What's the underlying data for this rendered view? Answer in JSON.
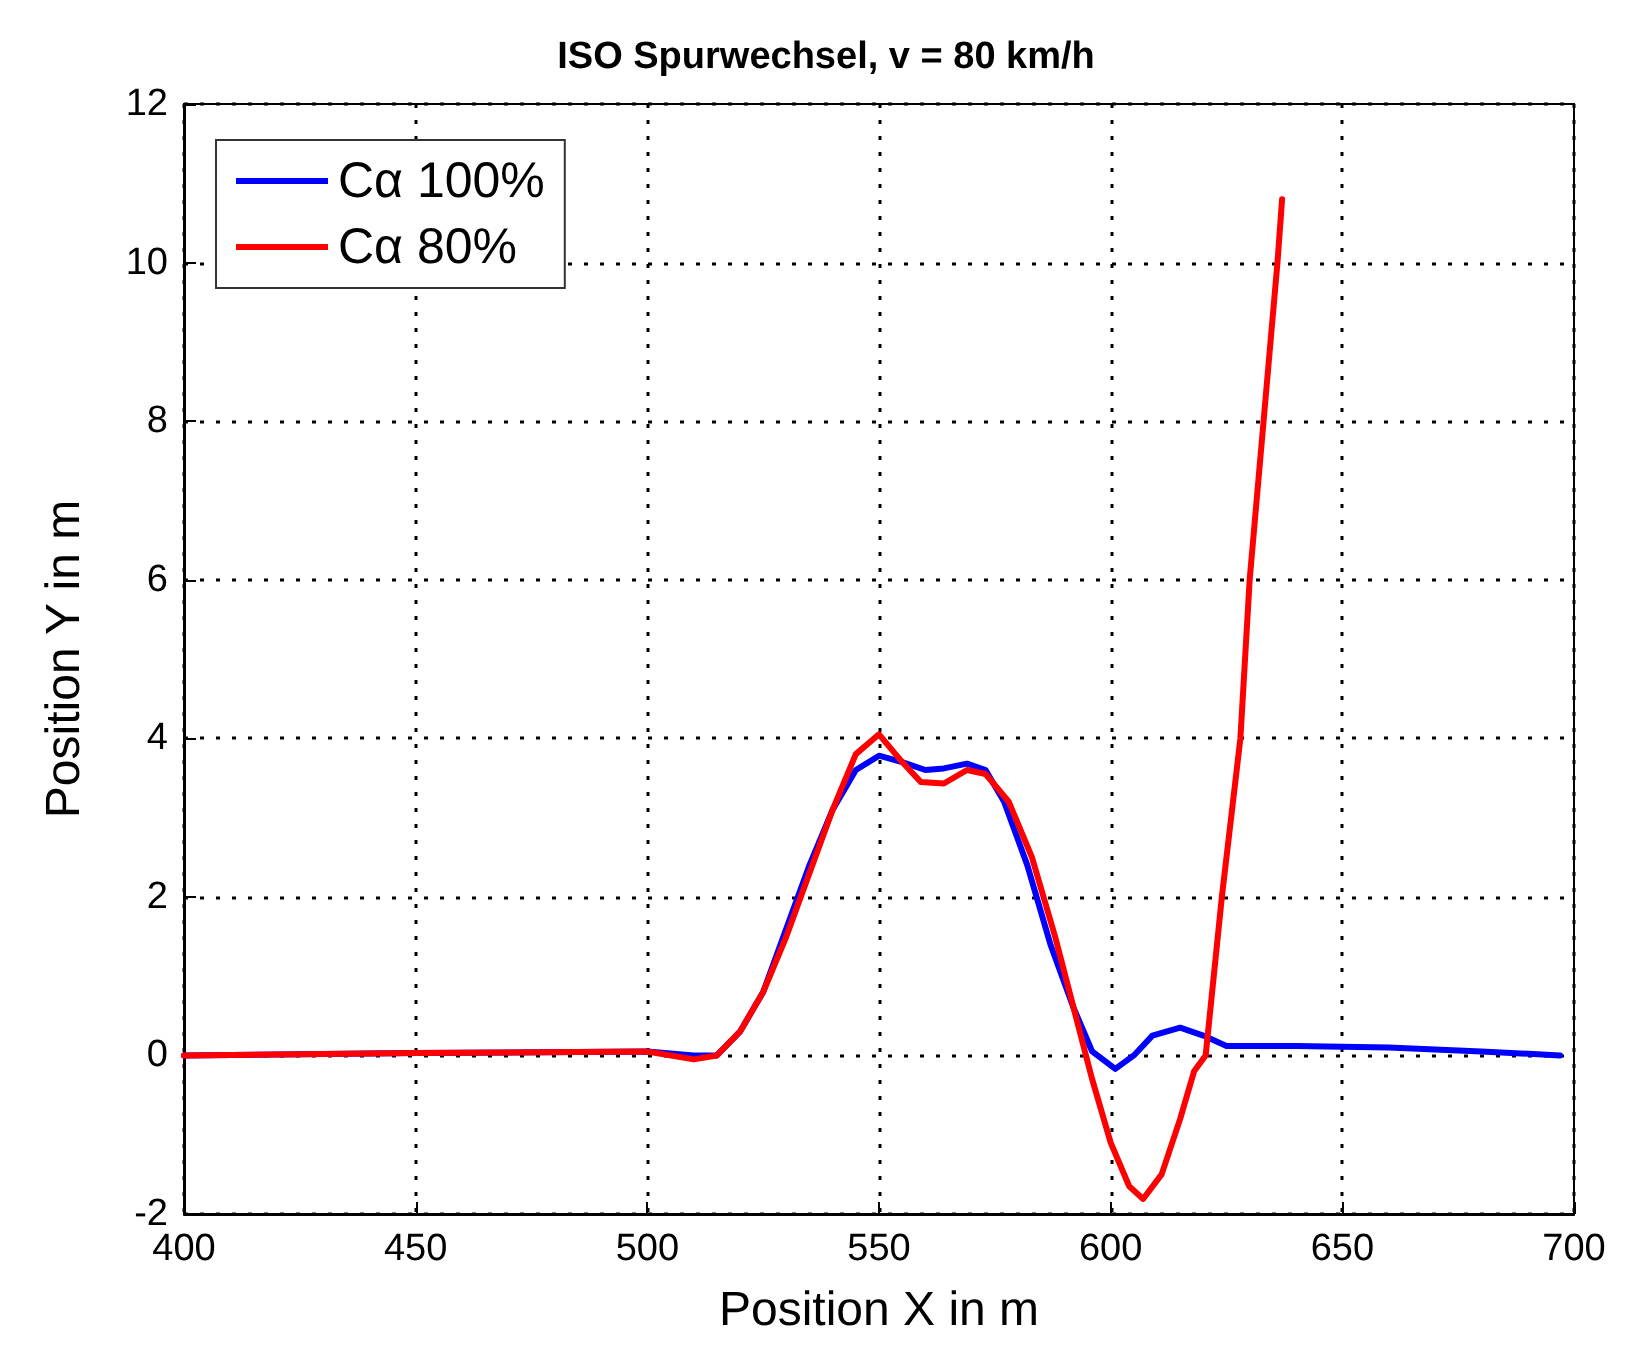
{
  "chart_data": {
    "type": "line",
    "title": "ISO Spurwechsel, v = 80 km/h",
    "xlabel": "Position X in m",
    "ylabel": "Position Y in m",
    "xlim": [
      400,
      700
    ],
    "xticks": [
      400,
      450,
      500,
      550,
      600,
      650,
      700
    ],
    "ylim": [
      -2,
      12
    ],
    "yticks": [
      -2,
      0,
      2,
      4,
      6,
      8,
      10,
      12
    ],
    "grid": true,
    "legend": "top left",
    "line_style": "solid",
    "marker": "none",
    "series": [
      {
        "name": "Cα 100%",
        "color": "#0000ff",
        "x": [
          400,
          450,
          500,
          510,
          515,
          520,
          525,
          530,
          535,
          540,
          545,
          550,
          555,
          560,
          564,
          569,
          573,
          577,
          582,
          587,
          592,
          596,
          601,
          605,
          609,
          615,
          620,
          625,
          640,
          660,
          680,
          697
        ],
        "values": [
          0,
          0.03,
          0.05,
          0,
          0,
          0.3,
          0.8,
          1.6,
          2.4,
          3.1,
          3.6,
          3.78,
          3.7,
          3.6,
          3.62,
          3.68,
          3.6,
          3.2,
          2.4,
          1.4,
          0.6,
          0.05,
          -0.17,
          0,
          0.25,
          0.35,
          0.25,
          0.12,
          0.12,
          0.1,
          0.05,
          0
        ]
      },
      {
        "name": "Cα 80%",
        "color": "#ff0000",
        "x": [
          400,
          450,
          500,
          510,
          515,
          520,
          525,
          530,
          535,
          540,
          545,
          550,
          555,
          559,
          564,
          569,
          573,
          578,
          583,
          588,
          592,
          596,
          600,
          604,
          607,
          611,
          615,
          618,
          620.5,
          624,
          628,
          630,
          633,
          636,
          637
        ],
        "values": [
          0,
          0.03,
          0.05,
          -0.05,
          0,
          0.3,
          0.8,
          1.5,
          2.3,
          3.1,
          3.8,
          4.05,
          3.7,
          3.45,
          3.43,
          3.6,
          3.55,
          3.2,
          2.5,
          1.5,
          0.6,
          -0.3,
          -1.1,
          -1.65,
          -1.81,
          -1.5,
          -0.8,
          -0.2,
          0,
          2,
          4,
          6,
          8,
          10,
          10.8
        ]
      }
    ]
  }
}
